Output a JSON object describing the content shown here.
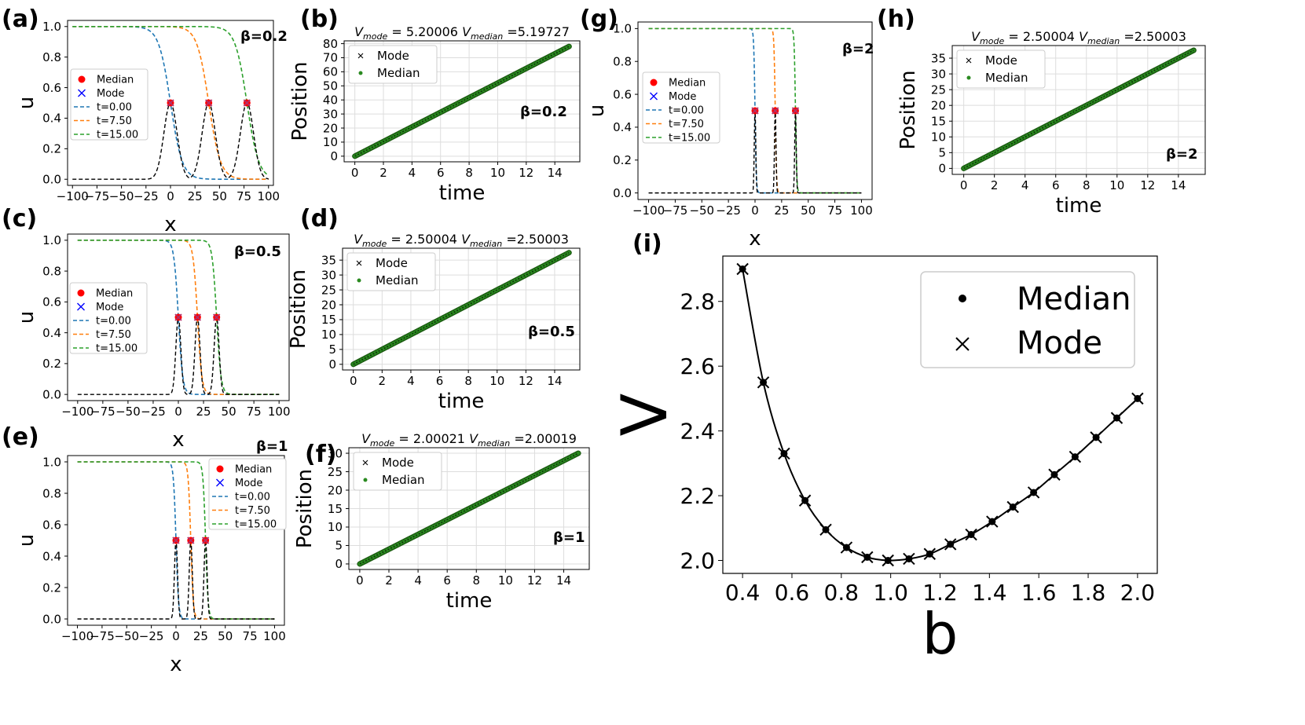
{
  "chart_data": [
    {
      "id": "a",
      "type": "line",
      "panel_label": "(a)",
      "beta_label": "β=0.2",
      "xlabel": "x",
      "ylabel": "u",
      "xlim": [
        -105,
        105
      ],
      "ylim": [
        -0.04,
        1.04
      ],
      "xticks": [
        -100,
        -75,
        -50,
        -25,
        0,
        25,
        50,
        75,
        100
      ],
      "xtick_labels": [
        "−100",
        "−75",
        "−50",
        "−25",
        "0",
        "25",
        "50",
        "75",
        "100"
      ],
      "yticks": [
        0.0,
        0.2,
        0.4,
        0.6,
        0.8,
        1.0
      ],
      "ytick_labels": [
        "0.0",
        "0.2",
        "0.4",
        "0.6",
        "0.8",
        "1.0"
      ],
      "legend": [
        "Median",
        "Mode",
        "t=0.00",
        "t=7.50",
        "t=15.00"
      ],
      "fronts": [
        0.0,
        39.0,
        78.0
      ],
      "front_width": 6.0,
      "pulse_width": 9.5
    },
    {
      "id": "b",
      "type": "scatter",
      "panel_label": "(b)",
      "beta_label": "β=0.2",
      "title_parts": [
        "V",
        "mode",
        " = 5.20006 ",
        "V",
        "median",
        " =5.19727"
      ],
      "xlabel": "time",
      "ylabel": "Position",
      "xlim": [
        -0.75,
        15.75
      ],
      "ylim": [
        -4,
        82
      ],
      "xticks": [
        0,
        2,
        4,
        6,
        8,
        10,
        12,
        14
      ],
      "xtick_labels": [
        "0",
        "2",
        "4",
        "6",
        "8",
        "10",
        "12",
        "14"
      ],
      "yticks": [
        0,
        10,
        20,
        30,
        40,
        50,
        60,
        70,
        80
      ],
      "ytick_labels": [
        "0",
        "10",
        "20",
        "30",
        "40",
        "50",
        "60",
        "70",
        "80"
      ],
      "legend": [
        "Mode",
        "Median"
      ],
      "slope": 5.2
    },
    {
      "id": "c",
      "type": "line",
      "panel_label": "(c)",
      "beta_label": "β=0.5",
      "xlabel": "x",
      "ylabel": "u",
      "xlim": [
        -110,
        110
      ],
      "ylim": [
        -0.04,
        1.04
      ],
      "xticks": [
        -100,
        -75,
        -50,
        -25,
        0,
        25,
        50,
        75,
        100
      ],
      "xtick_labels": [
        "−100",
        "−75",
        "−50",
        "−25",
        "0",
        "25",
        "50",
        "75",
        "100"
      ],
      "yticks": [
        0.0,
        0.2,
        0.4,
        0.6,
        0.8,
        1.0
      ],
      "ytick_labels": [
        "0.0",
        "0.2",
        "0.4",
        "0.6",
        "0.8",
        "1.0"
      ],
      "legend": [
        "Median",
        "Mode",
        "t=0.00",
        "t=7.50",
        "t=15.00"
      ],
      "fronts": [
        0.0,
        19.0,
        38.0
      ],
      "front_width": 2.2,
      "pulse_width": 3.5
    },
    {
      "id": "d",
      "type": "scatter",
      "panel_label": "(d)",
      "beta_label": "β=0.5",
      "title_parts": [
        "V",
        "mode",
        " = 2.50004 ",
        "V",
        "median",
        " =2.50003"
      ],
      "xlabel": "time",
      "ylabel": "Position",
      "xlim": [
        -0.75,
        15.75
      ],
      "ylim": [
        -1.9,
        39
      ],
      "xticks": [
        0,
        2,
        4,
        6,
        8,
        10,
        12,
        14
      ],
      "xtick_labels": [
        "0",
        "2",
        "4",
        "6",
        "8",
        "10",
        "12",
        "14"
      ],
      "yticks": [
        0,
        5,
        10,
        15,
        20,
        25,
        30,
        35
      ],
      "ytick_labels": [
        "0",
        "5",
        "10",
        "15",
        "20",
        "25",
        "30",
        "35"
      ],
      "legend": [
        "Mode",
        "Median"
      ],
      "slope": 2.5
    },
    {
      "id": "e",
      "type": "line",
      "panel_label": "(e)",
      "beta_label": "β=1",
      "xlabel": "x",
      "ylabel": "u",
      "xlim": [
        -110,
        110
      ],
      "ylim": [
        -0.04,
        1.04
      ],
      "xticks": [
        -100,
        -75,
        -50,
        -25,
        0,
        25,
        50,
        75,
        100
      ],
      "xtick_labels": [
        "−100",
        "−75",
        "−50",
        "−25",
        "0",
        "25",
        "50",
        "75",
        "100"
      ],
      "yticks": [
        0.0,
        0.2,
        0.4,
        0.6,
        0.8,
        1.0
      ],
      "ytick_labels": [
        "0.0",
        "0.2",
        "0.4",
        "0.6",
        "0.8",
        "1.0"
      ],
      "legend": [
        "Median",
        "Mode",
        "t=0.00",
        "t=7.50",
        "t=15.00"
      ],
      "fronts": [
        0.0,
        15.0,
        30.0
      ],
      "front_width": 1.3,
      "pulse_width": 2.2
    },
    {
      "id": "f",
      "type": "scatter",
      "panel_label": "(f)",
      "beta_label": "β=1",
      "title_parts": [
        "V",
        "mode",
        " = 2.00021 ",
        "V",
        "median",
        " =2.00019"
      ],
      "xlabel": "time",
      "ylabel": "Position",
      "xlim": [
        -0.75,
        15.75
      ],
      "ylim": [
        -1.5,
        31.5
      ],
      "xticks": [
        0,
        2,
        4,
        6,
        8,
        10,
        12,
        14
      ],
      "xtick_labels": [
        "0",
        "2",
        "4",
        "6",
        "8",
        "10",
        "12",
        "14"
      ],
      "yticks": [
        0,
        5,
        10,
        15,
        20,
        25,
        30
      ],
      "ytick_labels": [
        "0",
        "5",
        "10",
        "15",
        "20",
        "25",
        "30"
      ],
      "legend": [
        "Mode",
        "Median"
      ],
      "slope": 2.0
    },
    {
      "id": "g",
      "type": "line",
      "panel_label": "(g)",
      "beta_label": "β=2",
      "xlabel": "x",
      "ylabel": "u",
      "xlim": [
        -110,
        110
      ],
      "ylim": [
        -0.04,
        1.04
      ],
      "xticks": [
        -100,
        -75,
        -50,
        -25,
        0,
        25,
        50,
        75,
        100
      ],
      "xtick_labels": [
        "−100",
        "−75",
        "−50",
        "−25",
        "0",
        "25",
        "50",
        "75",
        "100"
      ],
      "yticks": [
        0.0,
        0.2,
        0.4,
        0.6,
        0.8,
        1.0
      ],
      "ytick_labels": [
        "0.0",
        "0.2",
        "0.4",
        "0.6",
        "0.8",
        "1.0"
      ],
      "legend": [
        "Median",
        "Mode",
        "t=0.00",
        "t=7.50",
        "t=15.00"
      ],
      "fronts": [
        0.0,
        19.0,
        38.0
      ],
      "front_width": 0.6,
      "pulse_width": 1.0
    },
    {
      "id": "h",
      "type": "scatter",
      "panel_label": "(h)",
      "beta_label": "β=2",
      "title_parts": [
        "V",
        "mode",
        " = 2.50004 ",
        "V",
        "median",
        " =2.50003"
      ],
      "xlabel": "time",
      "ylabel": "Position",
      "xlim": [
        -0.75,
        15.75
      ],
      "ylim": [
        -1.9,
        39
      ],
      "xticks": [
        0,
        2,
        4,
        6,
        8,
        10,
        12,
        14
      ],
      "xtick_labels": [
        "0",
        "2",
        "4",
        "6",
        "8",
        "10",
        "12",
        "14"
      ],
      "yticks": [
        0,
        5,
        10,
        15,
        20,
        25,
        30,
        35
      ],
      "ytick_labels": [
        "0",
        "5",
        "10",
        "15",
        "20",
        "25",
        "30",
        "35"
      ],
      "legend": [
        "Mode",
        "Median"
      ],
      "slope": 2.5
    },
    {
      "id": "i",
      "type": "line",
      "panel_label": "(i)",
      "xlabel": "b",
      "ylabel": "V",
      "xlim": [
        0.32,
        2.08
      ],
      "ylim": [
        1.96,
        2.94
      ],
      "xticks": [
        0.4,
        0.6,
        0.8,
        1.0,
        1.2,
        1.4,
        1.6,
        1.8,
        2.0
      ],
      "xtick_labels": [
        "0.4",
        "0.6",
        "0.8",
        "1.0",
        "1.2",
        "1.4",
        "1.6",
        "1.8",
        "2.0"
      ],
      "yticks": [
        2.0,
        2.2,
        2.4,
        2.6,
        2.8
      ],
      "ytick_labels": [
        "2.0",
        "2.2",
        "2.4",
        "2.6",
        "2.8"
      ],
      "legend": [
        "Median",
        "Mode"
      ],
      "x": [
        0.4,
        0.484,
        0.568,
        0.653,
        0.737,
        0.821,
        0.905,
        0.989,
        1.074,
        1.158,
        1.242,
        1.326,
        1.411,
        1.495,
        1.579,
        1.663,
        1.747,
        1.832,
        1.916,
        2.0
      ],
      "y": [
        2.9,
        2.55,
        2.33,
        2.185,
        2.095,
        2.04,
        2.01,
        2.0,
        2.005,
        2.02,
        2.05,
        2.08,
        2.12,
        2.165,
        2.21,
        2.265,
        2.32,
        2.38,
        2.44,
        2.5
      ]
    }
  ]
}
